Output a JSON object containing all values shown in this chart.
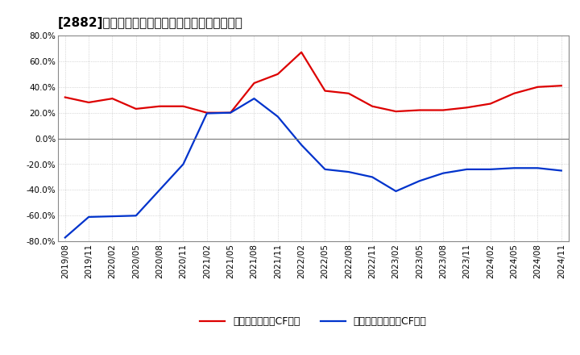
{
  "title": "[2882]　有利子負債キャッシュフロー比率の推移",
  "legend_red": "有利子負債営業CF比率",
  "legend_blue": "有利子負債フリーCF比率",
  "background_color": "#ffffff",
  "plot_bg_color": "#ffffff",
  "grid_color": "#aaaaaa",
  "x_labels": [
    "2019/08",
    "2019/11",
    "2020/02",
    "2020/05",
    "2020/08",
    "2020/11",
    "2021/02",
    "2021/05",
    "2021/08",
    "2021/11",
    "2022/02",
    "2022/05",
    "2022/08",
    "2022/11",
    "2023/02",
    "2023/05",
    "2023/08",
    "2023/11",
    "2024/02",
    "2024/05",
    "2024/08",
    "2024/11"
  ],
  "red_values": [
    32.0,
    28.0,
    31.0,
    23.0,
    25.0,
    25.0,
    20.0,
    20.0,
    43.0,
    50.0,
    67.0,
    37.0,
    35.0,
    25.0,
    21.0,
    22.0,
    22.0,
    24.0,
    27.0,
    35.0,
    40.0,
    41.0
  ],
  "blue_values": [
    -77.0,
    -61.0,
    -60.5,
    -60.0,
    -40.0,
    -20.0,
    19.5,
    20.0,
    31.0,
    17.0,
    -5.0,
    -24.0,
    -26.0,
    -30.0,
    -41.0,
    -33.0,
    -27.0,
    -24.0,
    -24.0,
    -23.0,
    -23.0,
    -25.0
  ],
  "ylim_min": -80,
  "ylim_max": 80,
  "yticks": [
    -80,
    -60,
    -40,
    -20,
    0,
    20,
    40,
    60,
    80
  ],
  "red_color": "#dd0000",
  "blue_color": "#0033cc",
  "line_width": 1.6
}
